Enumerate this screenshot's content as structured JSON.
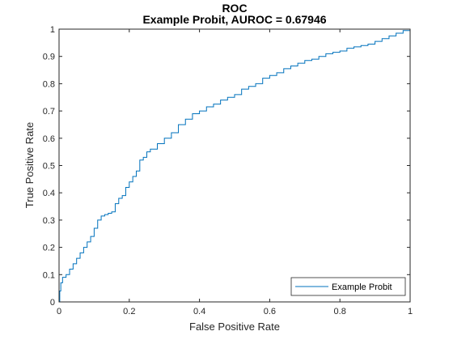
{
  "chart_data": {
    "type": "line",
    "title": "ROC",
    "subtitle": "Example Probit, AUROC = 0.67946",
    "xlabel": "False Positive Rate",
    "ylabel": "True Positive Rate",
    "xlim": [
      0,
      1
    ],
    "ylim": [
      0,
      1
    ],
    "xticks": [
      0,
      0.2,
      0.4,
      0.6,
      0.8,
      1
    ],
    "xtick_labels": [
      "0",
      "0.2",
      "0.4",
      "0.6",
      "0.8",
      "1"
    ],
    "yticks": [
      0,
      0.1,
      0.2,
      0.3,
      0.4,
      0.5,
      0.6,
      0.7,
      0.8,
      0.9,
      1
    ],
    "ytick_labels": [
      "0",
      "0.1",
      "0.2",
      "0.3",
      "0.4",
      "0.5",
      "0.6",
      "0.7",
      "0.8",
      "0.9",
      "1"
    ],
    "grid": false,
    "legend_position": "bottom-right",
    "series": [
      {
        "name": "Example Probit",
        "color": "#0072BD",
        "x": [
          0,
          0.002,
          0.005,
          0.01,
          0.02,
          0.03,
          0.04,
          0.05,
          0.06,
          0.07,
          0.08,
          0.09,
          0.1,
          0.11,
          0.12,
          0.13,
          0.14,
          0.15,
          0.16,
          0.17,
          0.18,
          0.19,
          0.2,
          0.21,
          0.22,
          0.23,
          0.24,
          0.25,
          0.26,
          0.28,
          0.3,
          0.32,
          0.34,
          0.36,
          0.38,
          0.4,
          0.42,
          0.44,
          0.46,
          0.48,
          0.5,
          0.52,
          0.54,
          0.56,
          0.58,
          0.6,
          0.62,
          0.64,
          0.66,
          0.68,
          0.7,
          0.72,
          0.74,
          0.76,
          0.78,
          0.8,
          0.82,
          0.84,
          0.86,
          0.88,
          0.9,
          0.92,
          0.94,
          0.96,
          0.98,
          1.0
        ],
        "y": [
          0,
          0.04,
          0.07,
          0.09,
          0.1,
          0.12,
          0.14,
          0.16,
          0.18,
          0.2,
          0.22,
          0.24,
          0.27,
          0.3,
          0.315,
          0.32,
          0.325,
          0.33,
          0.36,
          0.38,
          0.39,
          0.42,
          0.44,
          0.46,
          0.48,
          0.52,
          0.53,
          0.55,
          0.56,
          0.58,
          0.6,
          0.62,
          0.65,
          0.67,
          0.69,
          0.7,
          0.715,
          0.725,
          0.74,
          0.75,
          0.76,
          0.78,
          0.79,
          0.8,
          0.82,
          0.83,
          0.84,
          0.855,
          0.865,
          0.875,
          0.885,
          0.89,
          0.9,
          0.91,
          0.915,
          0.92,
          0.93,
          0.935,
          0.94,
          0.945,
          0.955,
          0.965,
          0.975,
          0.985,
          0.995,
          1.0
        ]
      }
    ]
  }
}
